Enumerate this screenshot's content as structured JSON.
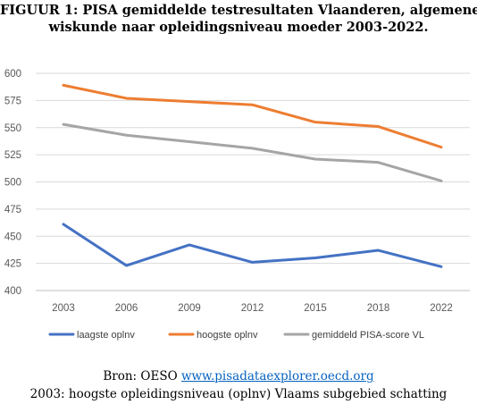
{
  "figure": {
    "title_line1": "FIGUUR 1: PISA gemiddelde testresultaten Vlaanderen, algemene",
    "title_line2": "wiskunde naar opleidingsniveau moeder 2003-2022.",
    "source_prefix": "Bron: OESO ",
    "source_link": "www.pisadataexplorer.oecd.org",
    "note": "2003: hoogste opleidingsniveau (oplnv) Vlaams subgebied schatting"
  },
  "chart_data": {
    "type": "line",
    "title": "FIGUUR 1: PISA gemiddelde testresultaten Vlaanderen, algemene wiskunde naar opleidingsniveau moeder 2003-2022.",
    "x": [
      "2003",
      "2006",
      "2009",
      "2012",
      "2015",
      "2018",
      "2022"
    ],
    "ylim": [
      400,
      600
    ],
    "yticks": [
      400,
      425,
      450,
      475,
      500,
      525,
      550,
      575,
      600
    ],
    "grid": true,
    "legend_position": "bottom",
    "series": [
      {
        "name": "laagste oplnv",
        "color": "#4472c4",
        "values": [
          461,
          423,
          442,
          426,
          430,
          437,
          422
        ]
      },
      {
        "name": "hoogste oplnv",
        "color": "#ed7d31",
        "values": [
          589,
          577,
          574,
          571,
          555,
          551,
          532
        ]
      },
      {
        "name": "gemiddeld PISA-score VL",
        "color": "#a5a5a5",
        "values": [
          553,
          543,
          537,
          531,
          521,
          518,
          501
        ]
      }
    ]
  }
}
